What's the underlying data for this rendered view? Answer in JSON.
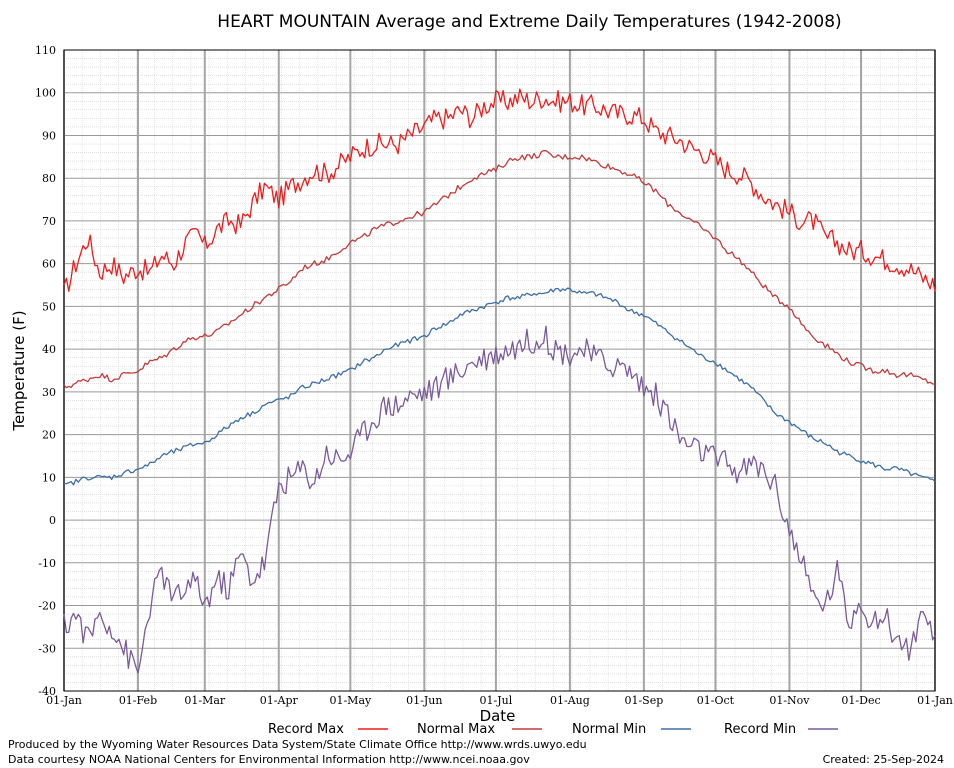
{
  "chart_data": {
    "type": "line",
    "title": "HEART MOUNTAIN Average and Extreme Daily Temperatures (1942-2008)",
    "xlabel": "Date",
    "ylabel": "Temperature (F)",
    "ylim": [
      -40,
      110
    ],
    "yticks": [
      -40,
      -30,
      -20,
      -10,
      0,
      10,
      20,
      30,
      40,
      50,
      60,
      70,
      80,
      90,
      100,
      110
    ],
    "xlim": [
      "01-Jan",
      "01-Jan"
    ],
    "xticks": [
      {
        "label": "01-Jan",
        "day": 0
      },
      {
        "label": "01-Feb",
        "day": 31
      },
      {
        "label": "01-Mar",
        "day": 59
      },
      {
        "label": "01-Apr",
        "day": 90
      },
      {
        "label": "01-May",
        "day": 120
      },
      {
        "label": "01-Jun",
        "day": 151
      },
      {
        "label": "01-Jul",
        "day": 181
      },
      {
        "label": "01-Aug",
        "day": 212
      },
      {
        "label": "01-Sep",
        "day": 243
      },
      {
        "label": "01-Oct",
        "day": 273
      },
      {
        "label": "01-Nov",
        "day": 304
      },
      {
        "label": "01-Dec",
        "day": 334
      },
      {
        "label": "01-Jan",
        "day": 365
      }
    ],
    "grid": true,
    "legend_position": "bottom",
    "series": [
      {
        "name": "Record Max",
        "color": "#ee1c1c",
        "day": [
          0,
          5,
          10,
          15,
          20,
          25,
          31,
          36,
          41,
          46,
          51,
          56,
          59,
          64,
          69,
          74,
          79,
          84,
          90,
          95,
          100,
          105,
          110,
          115,
          120,
          125,
          130,
          135,
          140,
          145,
          151,
          156,
          161,
          166,
          171,
          176,
          181,
          186,
          191,
          196,
          201,
          206,
          212,
          217,
          222,
          227,
          232,
          237,
          243,
          248,
          253,
          258,
          263,
          268,
          273,
          278,
          283,
          288,
          293,
          298,
          304,
          309,
          314,
          319,
          324,
          329,
          334,
          339,
          344,
          349,
          354,
          359,
          365
        ],
        "values": [
          53,
          60,
          66,
          58,
          60,
          57,
          59,
          58,
          62,
          60,
          65,
          67,
          64,
          68,
          70,
          69,
          74,
          78,
          75,
          78,
          80,
          82,
          81,
          83,
          85,
          87,
          88,
          88,
          88,
          90,
          92,
          94,
          94,
          96,
          94,
          97,
          98,
          98,
          99,
          98,
          99,
          98,
          98,
          97,
          97,
          96,
          95,
          95,
          94,
          91,
          90,
          89,
          87,
          86,
          84,
          82,
          81,
          79,
          76,
          74,
          72,
          70,
          70,
          66,
          65,
          63,
          63,
          62,
          61,
          60,
          59,
          57,
          55
        ]
      },
      {
        "name": "Normal Max",
        "color": "#c03c3c",
        "day": [
          0,
          5,
          10,
          15,
          20,
          25,
          31,
          36,
          41,
          46,
          51,
          56,
          59,
          64,
          69,
          74,
          79,
          84,
          90,
          95,
          100,
          105,
          110,
          115,
          120,
          125,
          130,
          135,
          140,
          145,
          151,
          156,
          161,
          166,
          171,
          176,
          181,
          186,
          191,
          196,
          201,
          206,
          212,
          217,
          222,
          227,
          232,
          237,
          243,
          248,
          253,
          258,
          263,
          268,
          273,
          278,
          283,
          288,
          293,
          298,
          304,
          309,
          314,
          319,
          324,
          329,
          334,
          339,
          344,
          349,
          354,
          359,
          365
        ],
        "values": [
          31,
          32,
          33,
          34,
          33,
          34,
          35,
          37,
          38,
          40,
          42,
          43,
          43,
          44,
          46,
          48,
          50,
          52,
          54,
          56,
          59,
          60,
          61,
          63,
          65,
          66,
          68,
          69,
          70,
          71,
          72,
          74,
          76,
          78,
          80,
          81,
          82,
          84,
          85,
          85,
          86,
          85,
          85,
          85,
          84,
          83,
          82,
          81,
          79,
          77,
          74,
          72,
          70,
          68,
          66,
          63,
          61,
          58,
          55,
          52,
          50,
          46,
          43,
          41,
          39,
          37,
          36,
          35,
          35,
          34,
          34,
          33,
          32
        ]
      },
      {
        "name": "Normal Min",
        "color": "#3c6ea8",
        "day": [
          0,
          5,
          10,
          15,
          20,
          25,
          31,
          36,
          41,
          46,
          51,
          56,
          59,
          64,
          69,
          74,
          79,
          84,
          90,
          95,
          100,
          105,
          110,
          115,
          120,
          125,
          130,
          135,
          140,
          145,
          151,
          156,
          161,
          166,
          171,
          176,
          181,
          186,
          191,
          196,
          201,
          206,
          212,
          217,
          222,
          227,
          232,
          237,
          243,
          248,
          253,
          258,
          263,
          268,
          273,
          278,
          283,
          288,
          293,
          298,
          304,
          309,
          314,
          319,
          324,
          329,
          334,
          339,
          344,
          349,
          354,
          359,
          365
        ],
        "values": [
          8,
          9,
          10,
          10,
          10,
          11,
          12,
          13,
          15,
          16,
          17,
          18,
          18,
          20,
          22,
          24,
          25,
          27,
          28,
          29,
          31,
          32,
          33,
          34,
          35,
          37,
          38,
          40,
          41,
          42,
          43,
          45,
          46,
          48,
          49,
          50,
          51,
          52,
          52,
          53,
          53,
          54,
          54,
          53,
          53,
          52,
          51,
          49,
          48,
          46,
          44,
          42,
          40,
          38,
          37,
          35,
          33,
          31,
          28,
          25,
          23,
          21,
          19,
          18,
          16,
          15,
          14,
          13,
          12,
          12,
          11,
          10,
          9
        ]
      },
      {
        "name": "Record Min",
        "color": "#7b5a9c",
        "day": [
          0,
          5,
          10,
          15,
          20,
          25,
          31,
          36,
          41,
          46,
          51,
          56,
          59,
          64,
          69,
          74,
          79,
          84,
          90,
          95,
          100,
          105,
          110,
          115,
          120,
          125,
          130,
          135,
          140,
          145,
          151,
          156,
          161,
          166,
          171,
          176,
          181,
          186,
          191,
          196,
          201,
          206,
          212,
          217,
          222,
          227,
          232,
          237,
          243,
          248,
          253,
          258,
          263,
          268,
          273,
          278,
          283,
          288,
          293,
          298,
          304,
          309,
          314,
          319,
          324,
          329,
          334,
          339,
          344,
          349,
          354,
          359,
          365
        ],
        "values": [
          -25,
          -22,
          -28,
          -22,
          -25,
          -30,
          -36,
          -20,
          -12,
          -19,
          -16,
          -15,
          -20,
          -14,
          -16,
          -8,
          -14,
          -10,
          8,
          10,
          12,
          9,
          16,
          14,
          16,
          20,
          24,
          27,
          27,
          29,
          30,
          31,
          33,
          35,
          37,
          38,
          39,
          40,
          41,
          42,
          43,
          40,
          39,
          40,
          38,
          37,
          36,
          35,
          31,
          29,
          25,
          19,
          17,
          16,
          14,
          13,
          11,
          13,
          12,
          8,
          -2,
          -10,
          -18,
          -20,
          -12,
          -24,
          -18,
          -25,
          -22,
          -28,
          -30,
          -24,
          -28
        ]
      }
    ],
    "credits": {
      "produced_by": "Produced by the Wyoming Water Resources Data System/State Climate Office http://www.wrds.uwyo.edu",
      "data_courtesy": "Data courtesy NOAA National Centers for Environmental Information http://www.ncei.noaa.gov",
      "created": "Created:  25-Sep-2024"
    }
  }
}
